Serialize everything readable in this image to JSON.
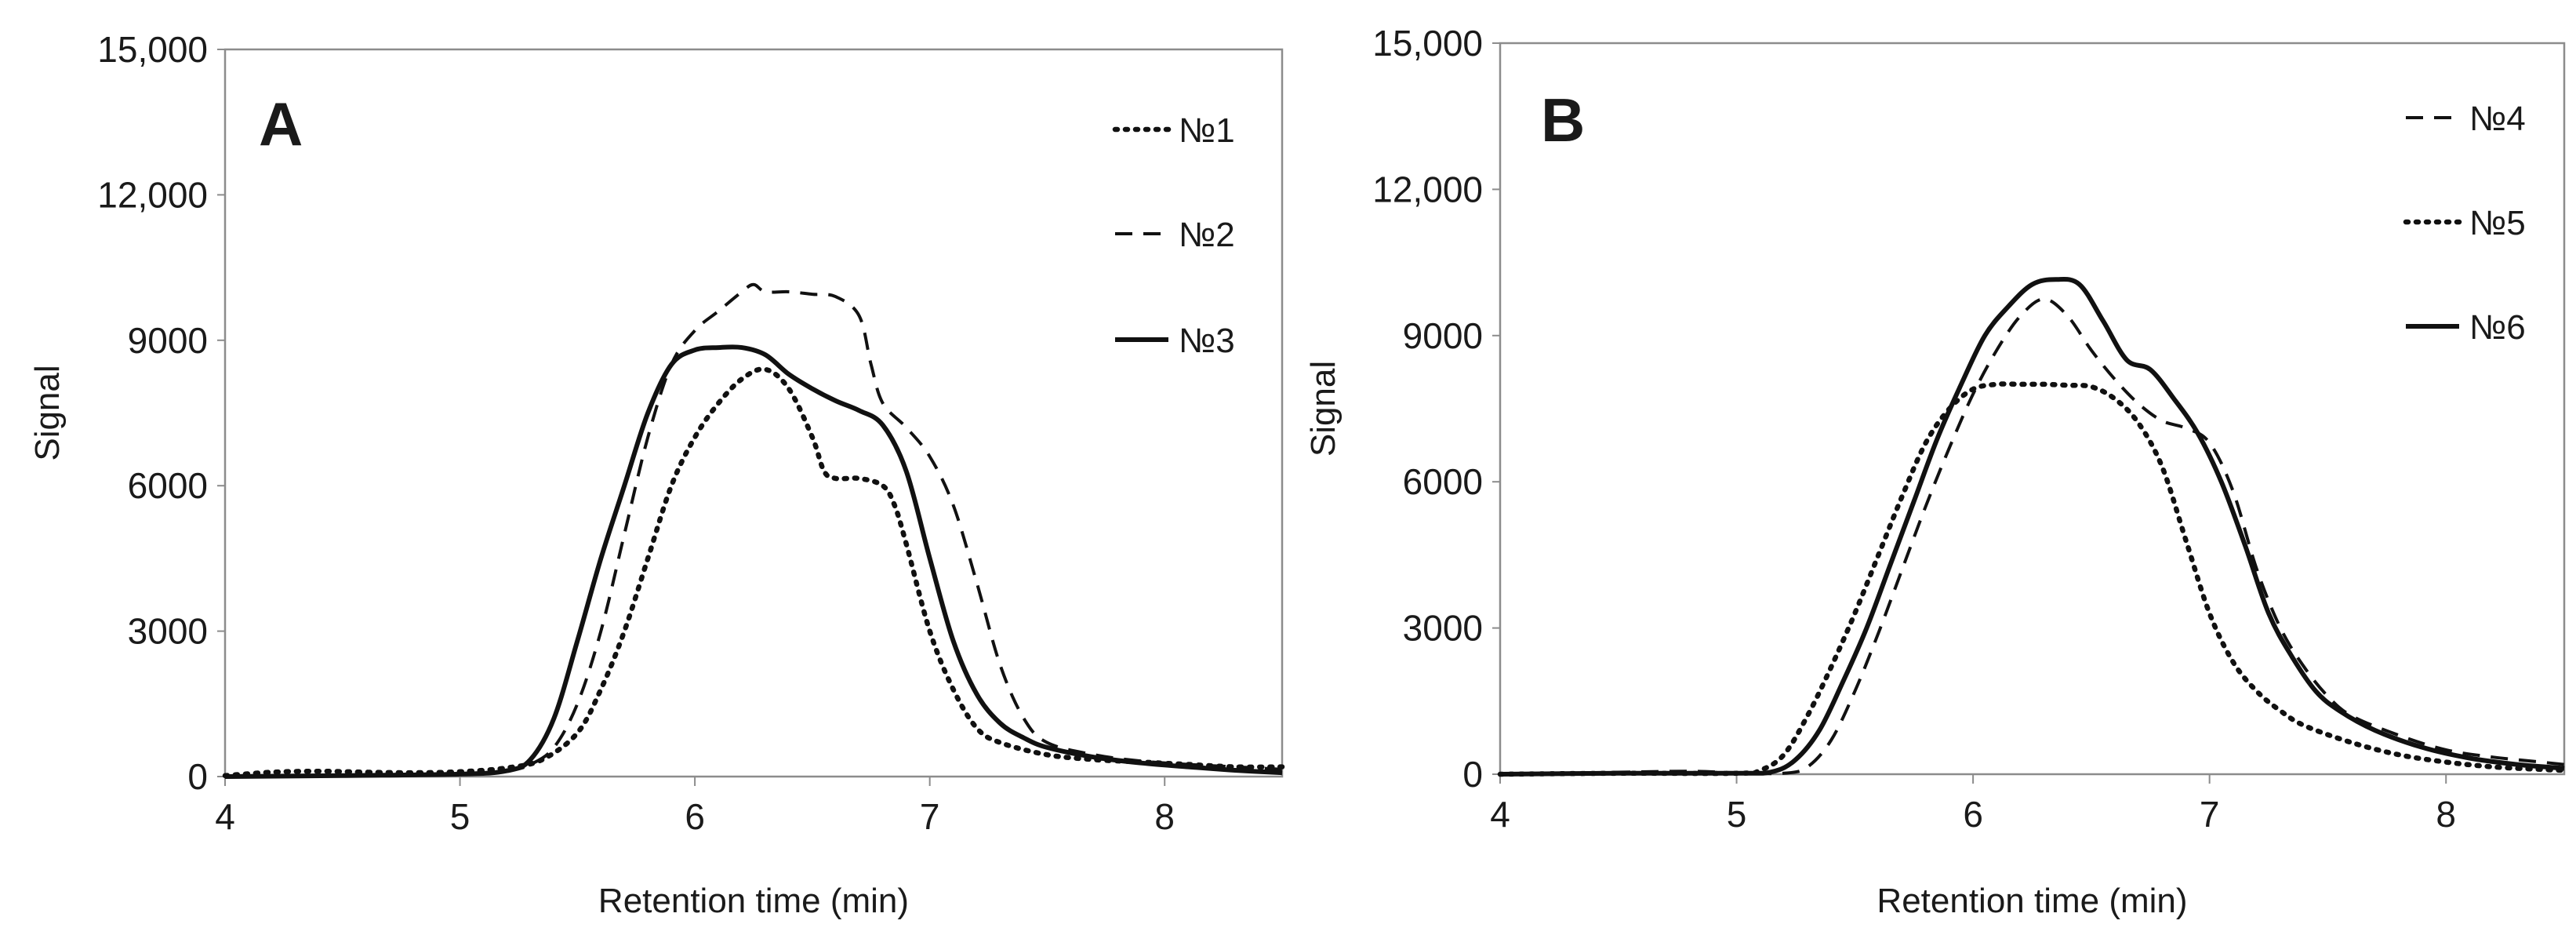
{
  "chart_data": [
    {
      "type": "line",
      "panel_label": "A",
      "xlabel": "Retention time (min)",
      "ylabel": "Signal",
      "xlim": [
        4,
        8.5
      ],
      "ylim": [
        0,
        15000
      ],
      "x_ticks": [
        4,
        5,
        6,
        7,
        8
      ],
      "x_tick_labels": [
        "4",
        "5",
        "6",
        "7",
        "8"
      ],
      "y_ticks": [
        0,
        3000,
        6000,
        9000,
        12000,
        15000
      ],
      "y_tick_labels": [
        "0",
        "3000",
        "6000",
        "9000",
        "12,000",
        "15,000"
      ],
      "grid": false,
      "legend_position": "top-right",
      "series": [
        {
          "name": "№1",
          "style": "dotted",
          "points": [
            [
              4.0,
              20
            ],
            [
              4.2,
              90
            ],
            [
              4.4,
              110
            ],
            [
              4.6,
              90
            ],
            [
              4.8,
              80
            ],
            [
              5.0,
              100
            ],
            [
              5.2,
              180
            ],
            [
              5.35,
              350
            ],
            [
              5.5,
              900
            ],
            [
              5.6,
              1800
            ],
            [
              5.7,
              3000
            ],
            [
              5.8,
              4500
            ],
            [
              5.9,
              6000
            ],
            [
              6.0,
              7000
            ],
            [
              6.1,
              7700
            ],
            [
              6.2,
              8200
            ],
            [
              6.3,
              8400
            ],
            [
              6.4,
              8000
            ],
            [
              6.5,
              7000
            ],
            [
              6.55,
              6300
            ],
            [
              6.6,
              6150
            ],
            [
              6.7,
              6150
            ],
            [
              6.8,
              6000
            ],
            [
              6.85,
              5600
            ],
            [
              6.9,
              4800
            ],
            [
              7.0,
              3000
            ],
            [
              7.1,
              1800
            ],
            [
              7.2,
              1000
            ],
            [
              7.3,
              700
            ],
            [
              7.5,
              450
            ],
            [
              7.7,
              350
            ],
            [
              7.9,
              300
            ],
            [
              8.1,
              250
            ],
            [
              8.3,
              200
            ],
            [
              8.5,
              200
            ]
          ]
        },
        {
          "name": "№2",
          "style": "dashed",
          "points": [
            [
              4.0,
              0
            ],
            [
              4.5,
              30
            ],
            [
              5.0,
              60
            ],
            [
              5.2,
              120
            ],
            [
              5.3,
              250
            ],
            [
              5.4,
              600
            ],
            [
              5.5,
              1500
            ],
            [
              5.6,
              3000
            ],
            [
              5.7,
              5000
            ],
            [
              5.8,
              7000
            ],
            [
              5.9,
              8500
            ],
            [
              6.0,
              9200
            ],
            [
              6.1,
              9600
            ],
            [
              6.2,
              10000
            ],
            [
              6.25,
              10150
            ],
            [
              6.3,
              10000
            ],
            [
              6.4,
              10000
            ],
            [
              6.5,
              9950
            ],
            [
              6.6,
              9900
            ],
            [
              6.7,
              9500
            ],
            [
              6.75,
              8500
            ],
            [
              6.8,
              7700
            ],
            [
              6.9,
              7200
            ],
            [
              7.0,
              6600
            ],
            [
              7.1,
              5600
            ],
            [
              7.2,
              4000
            ],
            [
              7.3,
              2300
            ],
            [
              7.4,
              1200
            ],
            [
              7.5,
              700
            ],
            [
              7.7,
              450
            ],
            [
              7.9,
              320
            ],
            [
              8.1,
              250
            ],
            [
              8.3,
              200
            ],
            [
              8.5,
              150
            ]
          ]
        },
        {
          "name": "№3",
          "style": "solid",
          "points": [
            [
              4.0,
              0
            ],
            [
              4.5,
              20
            ],
            [
              5.0,
              50
            ],
            [
              5.2,
              120
            ],
            [
              5.3,
              350
            ],
            [
              5.4,
              1200
            ],
            [
              5.5,
              2800
            ],
            [
              5.6,
              4500
            ],
            [
              5.7,
              6000
            ],
            [
              5.8,
              7500
            ],
            [
              5.9,
              8500
            ],
            [
              6.0,
              8800
            ],
            [
              6.1,
              8850
            ],
            [
              6.2,
              8850
            ],
            [
              6.3,
              8700
            ],
            [
              6.4,
              8300
            ],
            [
              6.5,
              8000
            ],
            [
              6.6,
              7750
            ],
            [
              6.7,
              7550
            ],
            [
              6.8,
              7250
            ],
            [
              6.9,
              6300
            ],
            [
              7.0,
              4500
            ],
            [
              7.1,
              2800
            ],
            [
              7.2,
              1700
            ],
            [
              7.3,
              1100
            ],
            [
              7.4,
              800
            ],
            [
              7.5,
              600
            ],
            [
              7.7,
              400
            ],
            [
              7.9,
              280
            ],
            [
              8.1,
              200
            ],
            [
              8.3,
              130
            ],
            [
              8.5,
              80
            ]
          ]
        }
      ]
    },
    {
      "type": "line",
      "panel_label": "B",
      "xlabel": "Retention time (min)",
      "ylabel": "Signal",
      "xlim": [
        4,
        8.5
      ],
      "ylim": [
        0,
        15000
      ],
      "x_ticks": [
        4,
        5,
        6,
        7,
        8
      ],
      "x_tick_labels": [
        "4",
        "5",
        "6",
        "7",
        "8"
      ],
      "y_ticks": [
        0,
        3000,
        6000,
        9000,
        12000,
        15000
      ],
      "y_tick_labels": [
        "0",
        "3000",
        "6000",
        "9000",
        "12,000",
        "15,000"
      ],
      "grid": false,
      "legend_position": "top-right",
      "series": [
        {
          "name": "№4",
          "style": "dashed",
          "points": [
            [
              4.0,
              0
            ],
            [
              4.5,
              40
            ],
            [
              4.8,
              60
            ],
            [
              5.0,
              30
            ],
            [
              5.2,
              20
            ],
            [
              5.3,
              150
            ],
            [
              5.4,
              700
            ],
            [
              5.5,
              1700
            ],
            [
              5.6,
              2900
            ],
            [
              5.7,
              4200
            ],
            [
              5.8,
              5500
            ],
            [
              5.9,
              6700
            ],
            [
              6.0,
              7800
            ],
            [
              6.1,
              8700
            ],
            [
              6.2,
              9400
            ],
            [
              6.3,
              9750
            ],
            [
              6.4,
              9400
            ],
            [
              6.5,
              8700
            ],
            [
              6.6,
              8100
            ],
            [
              6.7,
              7600
            ],
            [
              6.8,
              7250
            ],
            [
              6.9,
              7100
            ],
            [
              7.0,
              6800
            ],
            [
              7.1,
              5800
            ],
            [
              7.2,
              4200
            ],
            [
              7.3,
              3000
            ],
            [
              7.4,
              2200
            ],
            [
              7.5,
              1600
            ],
            [
              7.6,
              1200
            ],
            [
              7.8,
              800
            ],
            [
              8.0,
              500
            ],
            [
              8.2,
              350
            ],
            [
              8.4,
              250
            ],
            [
              8.5,
              200
            ]
          ]
        },
        {
          "name": "№5",
          "style": "dotted",
          "points": [
            [
              4.0,
              0
            ],
            [
              4.5,
              20
            ],
            [
              5.0,
              20
            ],
            [
              5.1,
              80
            ],
            [
              5.2,
              400
            ],
            [
              5.3,
              1200
            ],
            [
              5.4,
              2200
            ],
            [
              5.5,
              3300
            ],
            [
              5.6,
              4500
            ],
            [
              5.7,
              5700
            ],
            [
              5.8,
              6800
            ],
            [
              5.9,
              7500
            ],
            [
              6.0,
              7900
            ],
            [
              6.1,
              8000
            ],
            [
              6.2,
              8000
            ],
            [
              6.3,
              8000
            ],
            [
              6.4,
              7980
            ],
            [
              6.5,
              7950
            ],
            [
              6.6,
              7700
            ],
            [
              6.7,
              7200
            ],
            [
              6.8,
              6300
            ],
            [
              6.9,
              4800
            ],
            [
              7.0,
              3300
            ],
            [
              7.1,
              2300
            ],
            [
              7.2,
              1700
            ],
            [
              7.3,
              1300
            ],
            [
              7.4,
              1000
            ],
            [
              7.6,
              650
            ],
            [
              7.8,
              400
            ],
            [
              8.0,
              250
            ],
            [
              8.2,
              150
            ],
            [
              8.4,
              100
            ],
            [
              8.5,
              80
            ]
          ]
        },
        {
          "name": "№6",
          "style": "solid",
          "points": [
            [
              4.0,
              0
            ],
            [
              4.5,
              20
            ],
            [
              5.0,
              20
            ],
            [
              5.15,
              50
            ],
            [
              5.25,
              300
            ],
            [
              5.35,
              900
            ],
            [
              5.45,
              1900
            ],
            [
              5.55,
              3000
            ],
            [
              5.65,
              4300
            ],
            [
              5.75,
              5600
            ],
            [
              5.85,
              6900
            ],
            [
              5.95,
              8000
            ],
            [
              6.05,
              9000
            ],
            [
              6.15,
              9600
            ],
            [
              6.25,
              10050
            ],
            [
              6.35,
              10150
            ],
            [
              6.45,
              10050
            ],
            [
              6.55,
              9300
            ],
            [
              6.65,
              8500
            ],
            [
              6.75,
              8300
            ],
            [
              6.85,
              7700
            ],
            [
              6.95,
              7000
            ],
            [
              7.05,
              6000
            ],
            [
              7.15,
              4700
            ],
            [
              7.25,
              3300
            ],
            [
              7.35,
              2400
            ],
            [
              7.45,
              1700
            ],
            [
              7.55,
              1300
            ],
            [
              7.7,
              900
            ],
            [
              7.9,
              550
            ],
            [
              8.1,
              330
            ],
            [
              8.3,
              200
            ],
            [
              8.5,
              120
            ]
          ]
        }
      ]
    }
  ]
}
